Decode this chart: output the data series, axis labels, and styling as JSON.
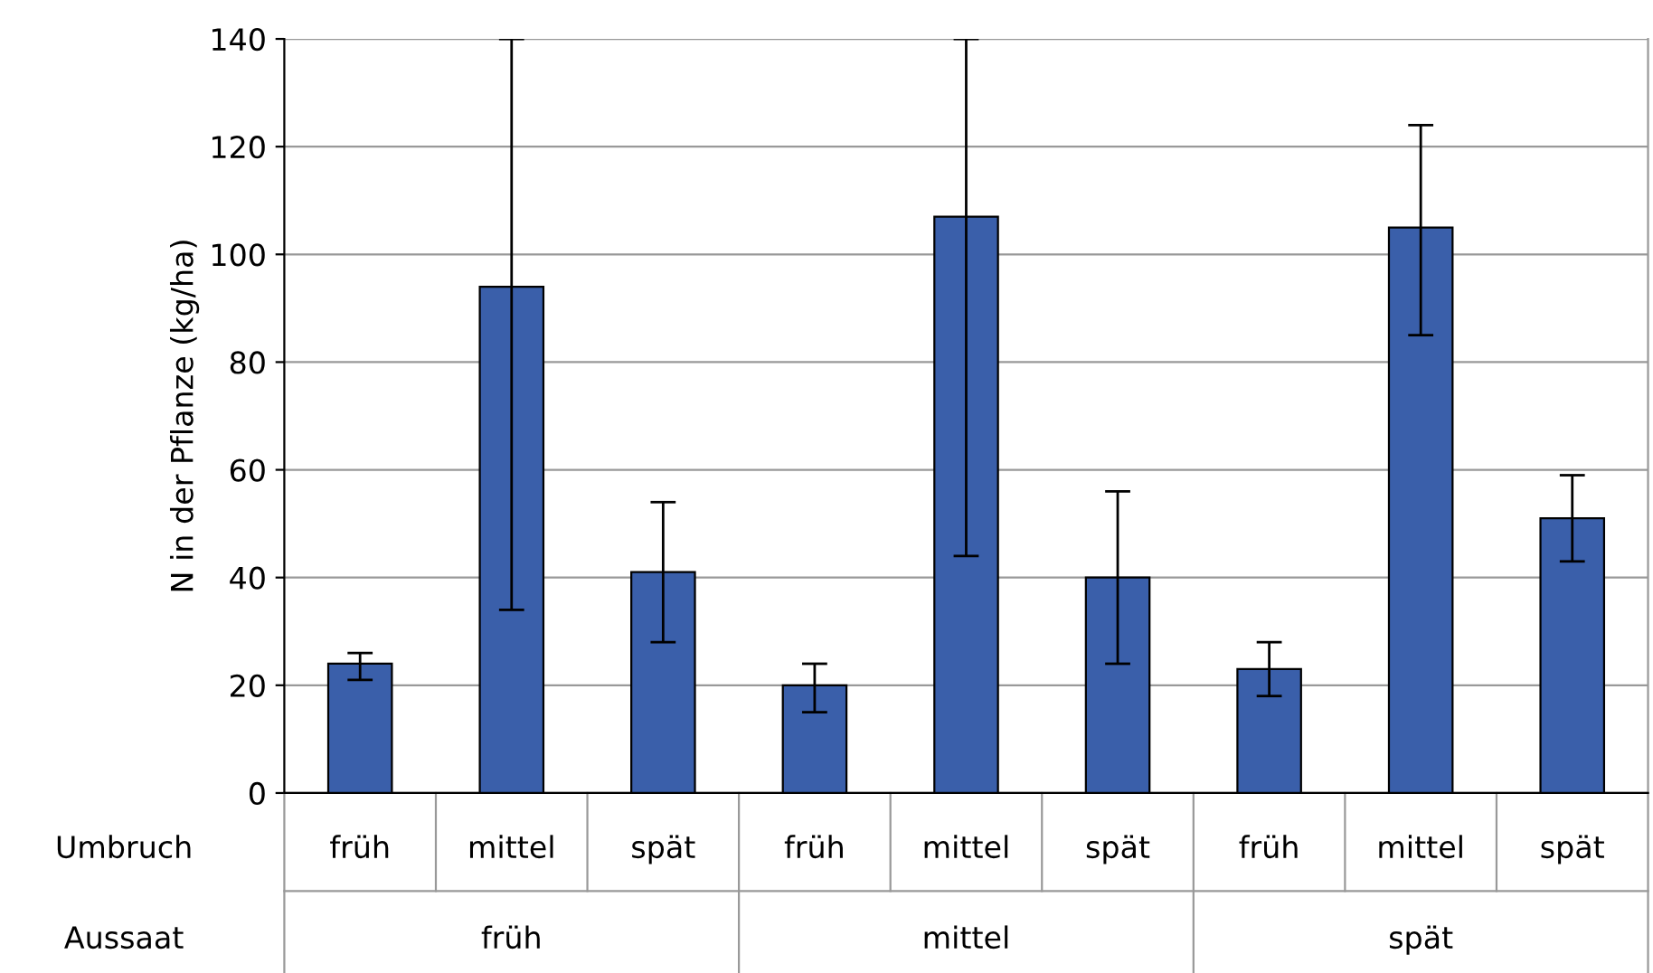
{
  "chart_data": {
    "type": "bar",
    "ylabel": "N in der Pflanze (kg/ha)",
    "categories": [
      "früh",
      "mittel",
      "spät",
      "früh",
      "mittel",
      "spät",
      "früh",
      "mittel",
      "spät"
    ],
    "values": [
      24,
      94,
      41,
      20,
      107,
      40,
      23,
      105,
      51
    ],
    "errors": [
      [
        21,
        26
      ],
      [
        34,
        140
      ],
      [
        28,
        54
      ],
      [
        15,
        24
      ],
      [
        44,
        140
      ],
      [
        24,
        56
      ],
      [
        18,
        28
      ],
      [
        85,
        124
      ],
      [
        43,
        59
      ]
    ],
    "color": "#3a5faa",
    "annotations": [
      "Umbruch",
      "Aussaat",
      "früh",
      "mittel",
      "spät"
    ],
    "ylim": [
      0,
      140
    ],
    "yticks": [
      0,
      20,
      40,
      60,
      80,
      100,
      120,
      140
    ],
    "grid": "y"
  }
}
